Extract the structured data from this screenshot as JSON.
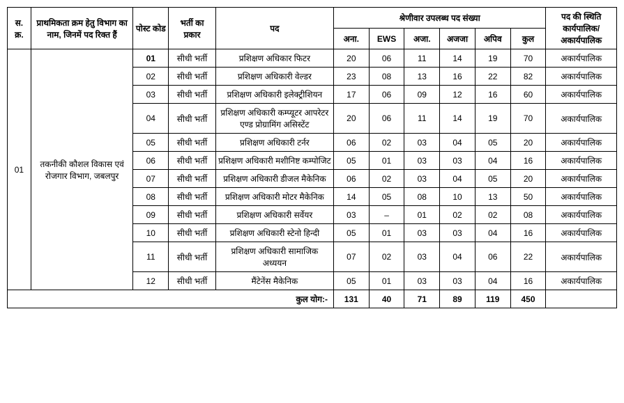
{
  "header": {
    "sr_no": "स.\nक्र.",
    "dept_name": "प्राथमिकता क्रम हेतु विभाग का नाम, जिनमें पद रिक्त हैं",
    "post_code": "पोस्ट कोड",
    "recruitment_type": "भर्ती का प्रकार",
    "post": "पद",
    "category_total": "श्रेणीवार उपलब्ध पद संख्या",
    "cat_ana": "अना.",
    "cat_ews": "EWS",
    "cat_aja": "अजा.",
    "cat_ajja": "अजजा",
    "cat_apiv": "अपिव",
    "cat_total": "कुल",
    "post_status": "पद की स्थिति कार्यपालिक/ अकार्यपालिक"
  },
  "serial": "01",
  "department": "तकनीकी कौशल विकास एवं रोजगार विभाग, जबलपुर",
  "rows": [
    {
      "code": "01",
      "type": "सीधी भर्ती",
      "post": "प्रशिक्षण अधिकार फिटर",
      "ana": "20",
      "ews": "06",
      "aja": "11",
      "ajja": "14",
      "apiv": "19",
      "total": "70",
      "status": "अकार्यपालिक"
    },
    {
      "code": "02",
      "type": "सीधी भर्ती",
      "post": "प्रशिक्षण अधिकारी वेल्डर",
      "ana": "23",
      "ews": "08",
      "aja": "13",
      "ajja": "16",
      "apiv": "22",
      "total": "82",
      "status": "अकार्यपालिक"
    },
    {
      "code": "03",
      "type": "सीधी भर्ती",
      "post": "प्रशिक्षण अधिकारी इलेक्ट्रीशियन",
      "ana": "17",
      "ews": "06",
      "aja": "09",
      "ajja": "12",
      "apiv": "16",
      "total": "60",
      "status": "अकार्यपालिक"
    },
    {
      "code": "04",
      "type": "सीधी भर्ती",
      "post": "प्रशिक्षण अधिकारी कम्प्यूटर आपरेटर एण्ड प्रोग्रामिंग असिस्टेंट",
      "ana": "20",
      "ews": "06",
      "aja": "11",
      "ajja": "14",
      "apiv": "19",
      "total": "70",
      "status": "अकार्यपालिक"
    },
    {
      "code": "05",
      "type": "सीधी भर्ती",
      "post": "प्रशिक्षण अधिकारी टर्नर",
      "ana": "06",
      "ews": "02",
      "aja": "03",
      "ajja": "04",
      "apiv": "05",
      "total": "20",
      "status": "अकार्यपालिक"
    },
    {
      "code": "06",
      "type": "सीधी भर्ती",
      "post": "प्रशिक्षण अधिकारी मशीनिष्ट कम्पोजिट",
      "ana": "05",
      "ews": "01",
      "aja": "03",
      "ajja": "03",
      "apiv": "04",
      "total": "16",
      "status": "अकार्यपालिक"
    },
    {
      "code": "07",
      "type": "सीधी भर्ती",
      "post": "प्रशिक्षण अधिकारी डीजल मैकेनिक",
      "ana": "06",
      "ews": "02",
      "aja": "03",
      "ajja": "04",
      "apiv": "05",
      "total": "20",
      "status": "अकार्यपालिक"
    },
    {
      "code": "08",
      "type": "सीधी भर्ती",
      "post": "प्रशिक्षण अधिकारी मोटर मैकेनिक",
      "ana": "14",
      "ews": "05",
      "aja": "08",
      "ajja": "10",
      "apiv": "13",
      "total": "50",
      "status": "अकार्यपालिक"
    },
    {
      "code": "09",
      "type": "सीधी भर्ती",
      "post": "प्रशिक्षण अधिकारी सर्वेयर",
      "ana": "03",
      "ews": "–",
      "aja": "01",
      "ajja": "02",
      "apiv": "02",
      "total": "08",
      "status": "अकार्यपालिक"
    },
    {
      "code": "10",
      "type": "सीधी भर्ती",
      "post": "प्रशिक्षण अधिकारी स्टेनो हिन्दी",
      "ana": "05",
      "ews": "01",
      "aja": "03",
      "ajja": "03",
      "apiv": "04",
      "total": "16",
      "status": "अकार्यपालिक"
    },
    {
      "code": "11",
      "type": "सीधी भर्ती",
      "post": "प्रशिक्षण अधिकारी सामाजिक अध्ययन",
      "ana": "07",
      "ews": "02",
      "aja": "03",
      "ajja": "04",
      "apiv": "06",
      "total": "22",
      "status": "अकार्यपालिक"
    },
    {
      "code": "12",
      "type": "सीधी भर्ती",
      "post": "मैंटेनेंस मैकेनिक",
      "ana": "05",
      "ews": "01",
      "aja": "03",
      "ajja": "03",
      "apiv": "04",
      "total": "16",
      "status": "अकार्यपालिक"
    }
  ],
  "totals": {
    "label": "कुल योग:-",
    "ana": "131",
    "ews": "40",
    "aja": "71",
    "ajja": "89",
    "apiv": "119",
    "total": "450",
    "status": ""
  }
}
